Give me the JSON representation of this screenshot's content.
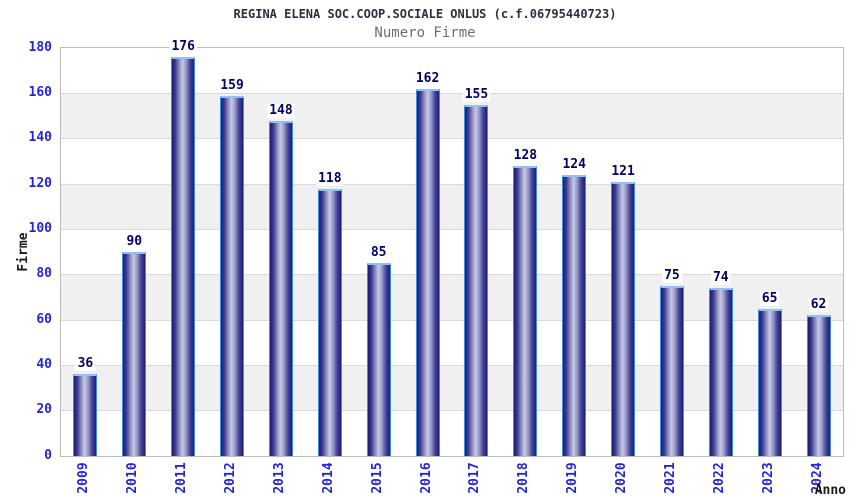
{
  "header": {
    "title": "REGINA ELENA SOC.COOP.SOCIALE ONLUS (c.f.06795440723)",
    "subtitle": "Numero Firme"
  },
  "chart_data": {
    "type": "bar",
    "title": "REGINA ELENA SOC.COOP.SOCIALE ONLUS (c.f.06795440723)",
    "subtitle": "Numero Firme",
    "categories": [
      "2009",
      "2010",
      "2011",
      "2012",
      "2013",
      "2014",
      "2015",
      "2016",
      "2017",
      "2018",
      "2019",
      "2020",
      "2021",
      "2022",
      "2023",
      "2024"
    ],
    "values": [
      36,
      90,
      176,
      159,
      148,
      118,
      85,
      162,
      155,
      128,
      124,
      121,
      75,
      74,
      65,
      62
    ],
    "xlabel": "Anno",
    "ylabel": "Firme",
    "ylim": [
      0,
      180
    ],
    "yticks": [
      0,
      20,
      40,
      60,
      80,
      100,
      120,
      140,
      160,
      180
    ],
    "grid": "horizontal-bands-alternating",
    "legend": "none",
    "colors": {
      "bar_dark": "#1d1d76",
      "bar_highlight": "#c9c9e8",
      "bar_outline": "#3d8fe0",
      "bar_cap": "#8ec2f4",
      "tick_text": "#2525d8",
      "value_text": "#000066",
      "band_gray": "#f0f0f0",
      "band_white": "#ffffff",
      "gridline": "#dadada",
      "frame": "#bcbcbc",
      "title_text": "#2e2e40",
      "subtitle_text": "#6e6e6e",
      "axis_title_text": "#1a1a1a"
    }
  }
}
